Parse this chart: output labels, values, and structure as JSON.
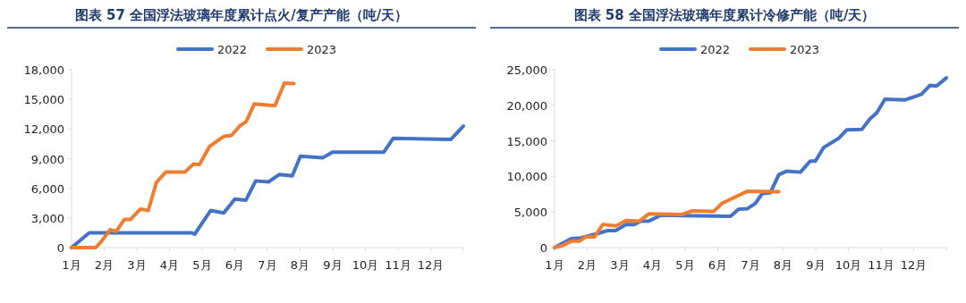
{
  "chart_data": [
    {
      "type": "line",
      "title": "图表 57 全国浮法玻璃年度累计点火/复产产能（吨/天）",
      "legend": "top",
      "xlim": [
        1,
        13
      ],
      "xticks": [
        {
          "value": 1,
          "label": "1月"
        },
        {
          "value": 2,
          "label": "2月"
        },
        {
          "value": 3,
          "label": "3月"
        },
        {
          "value": 4,
          "label": "4月"
        },
        {
          "value": 5,
          "label": "5月"
        },
        {
          "value": 6,
          "label": "6月"
        },
        {
          "value": 7,
          "label": "7月"
        },
        {
          "value": 8,
          "label": "8月"
        },
        {
          "value": 9,
          "label": "9月"
        },
        {
          "value": 10,
          "label": "10月"
        },
        {
          "value": 11,
          "label": "11月"
        },
        {
          "value": 12,
          "label": "12月"
        }
      ],
      "ylim": [
        0,
        18000
      ],
      "yticks": [
        {
          "value": 0,
          "label": "0"
        },
        {
          "value": 3000,
          "label": "3,000"
        },
        {
          "value": 6000,
          "label": "6,000"
        },
        {
          "value": 9000,
          "label": "9,000"
        },
        {
          "value": 12000,
          "label": "12,000"
        },
        {
          "value": 15000,
          "label": "15,000"
        },
        {
          "value": 18000,
          "label": "18,000"
        }
      ],
      "series": [
        {
          "name": "2022",
          "color": "#4472c4",
          "x": [
            1,
            1.54,
            4.68,
            4.77,
            5.26,
            5.66,
            6.0,
            6.34,
            6.64,
            7.03,
            7.37,
            7.76,
            8.01,
            8.7,
            8.99,
            10.56,
            10.85,
            12.62,
            13.0
          ],
          "values": [
            0,
            1500,
            1500,
            1350,
            3750,
            3500,
            4900,
            4800,
            6750,
            6650,
            7400,
            7250,
            9250,
            9100,
            9650,
            9650,
            11050,
            10950,
            12300
          ]
        },
        {
          "name": "2023",
          "color": "#ed7d31",
          "x": [
            1,
            1.74,
            1.91,
            2.18,
            2.37,
            2.62,
            2.81,
            3.11,
            3.35,
            3.6,
            3.89,
            4.48,
            4.73,
            4.92,
            5.22,
            5.66,
            5.9,
            6.15,
            6.35,
            6.6,
            6.89,
            7.23,
            7.52,
            7.81
          ],
          "values": [
            0,
            0,
            600,
            1800,
            1650,
            2850,
            2850,
            3900,
            3750,
            6600,
            7650,
            7650,
            8450,
            8400,
            10200,
            11250,
            11350,
            12300,
            12750,
            14550,
            14450,
            14350,
            16650,
            16600
          ]
        }
      ]
    },
    {
      "type": "line",
      "title": "图表 58 全国浮法玻璃年度累计冷修产能（吨/天）",
      "legend": "top",
      "xlim": [
        1,
        13
      ],
      "xticks": [
        {
          "value": 1,
          "label": "1月"
        },
        {
          "value": 2,
          "label": "2月"
        },
        {
          "value": 3,
          "label": "3月"
        },
        {
          "value": 4,
          "label": "4月"
        },
        {
          "value": 5,
          "label": "5月"
        },
        {
          "value": 6,
          "label": "6月"
        },
        {
          "value": 7,
          "label": "7月"
        },
        {
          "value": 8,
          "label": "8月"
        },
        {
          "value": 9,
          "label": "9月"
        },
        {
          "value": 10,
          "label": "10月"
        },
        {
          "value": 11,
          "label": "11月"
        },
        {
          "value": 12,
          "label": "12月"
        }
      ],
      "ylim": [
        0,
        25000
      ],
      "yticks": [
        {
          "value": 0,
          "label": "0"
        },
        {
          "value": 5000,
          "label": "5,000"
        },
        {
          "value": 10000,
          "label": "10,000"
        },
        {
          "value": 15000,
          "label": "15,000"
        },
        {
          "value": 20000,
          "label": "20,000"
        },
        {
          "value": 25000,
          "label": "25,000"
        }
      ],
      "series": [
        {
          "name": "2022",
          "color": "#4472c4",
          "x": [
            1,
            1.51,
            1.81,
            2.42,
            2.63,
            2.88,
            3.19,
            3.44,
            3.64,
            3.9,
            4.26,
            6.39,
            6.64,
            6.9,
            7.15,
            7.36,
            7.61,
            7.87,
            8.12,
            8.53,
            8.83,
            8.99,
            9.24,
            9.7,
            9.95,
            10.41,
            10.66,
            10.87,
            11.12,
            11.73,
            12.24,
            12.5,
            12.7,
            13.0
          ],
          "values": [
            0,
            1250,
            1350,
            2100,
            2400,
            2400,
            3250,
            3250,
            3700,
            3750,
            4550,
            4400,
            5400,
            5450,
            6200,
            7600,
            7700,
            10250,
            10750,
            10600,
            12150,
            12150,
            14050,
            15350,
            16550,
            16600,
            18100,
            18950,
            20850,
            20750,
            21550,
            22800,
            22700,
            23850
          ]
        },
        {
          "name": "2023",
          "color": "#ed7d31",
          "x": [
            1,
            1.25,
            1.51,
            1.76,
            1.97,
            2.22,
            2.48,
            2.88,
            3.19,
            3.59,
            3.9,
            4.89,
            5.22,
            5.88,
            6.14,
            6.9,
            7.87
          ],
          "values": [
            0,
            300,
            900,
            900,
            1550,
            1500,
            3250,
            3050,
            3800,
            3700,
            4750,
            4650,
            5150,
            5100,
            6250,
            7900,
            7850
          ]
        }
      ]
    }
  ]
}
